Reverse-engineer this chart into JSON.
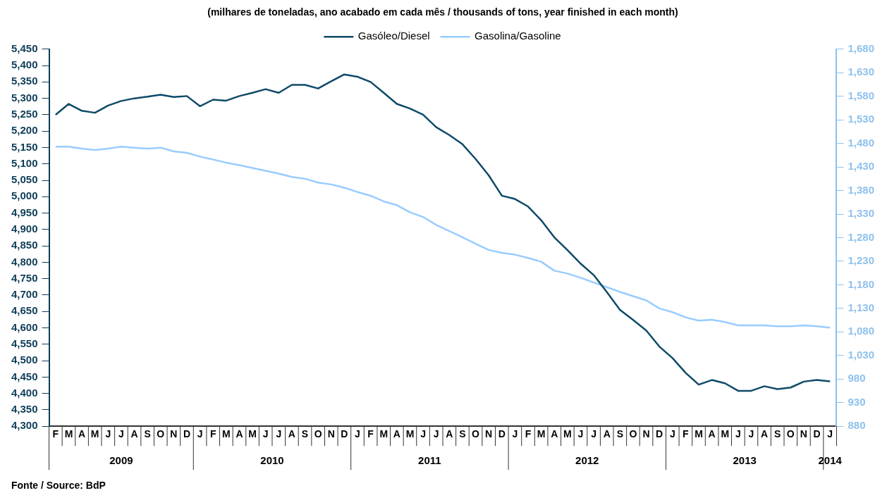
{
  "chart_data": {
    "type": "line",
    "subtitle": "(milhares de toneladas, ano acabado em cada mês / thousands of tons, year finished in each month)",
    "categories": [
      "F",
      "M",
      "A",
      "M",
      "J",
      "J",
      "A",
      "S",
      "O",
      "N",
      "D",
      "J",
      "F",
      "M",
      "A",
      "M",
      "J",
      "J",
      "A",
      "S",
      "O",
      "N",
      "D",
      "J",
      "F",
      "M",
      "A",
      "M",
      "J",
      "J",
      "A",
      "S",
      "O",
      "N",
      "D",
      "J",
      "F",
      "M",
      "A",
      "M",
      "J",
      "J",
      "A",
      "S",
      "O",
      "N",
      "D",
      "J",
      "F",
      "M",
      "A",
      "M",
      "J",
      "J",
      "A",
      "S",
      "O",
      "N",
      "D",
      "J"
    ],
    "series": [
      {
        "name": "Gasóleo/Diesel",
        "color": "#0e4a68",
        "values": [
          5250,
          5283,
          5262,
          5256,
          5278,
          5292,
          5300,
          5305,
          5311,
          5304,
          5307,
          5276,
          5296,
          5293,
          5307,
          5317,
          5328,
          5317,
          5341,
          5341,
          5330,
          5352,
          5373,
          5366,
          5350,
          5317,
          5283,
          5269,
          5250,
          5212,
          5188,
          5160,
          5115,
          5065,
          5003,
          4993,
          4970,
          4928,
          4876,
          4837,
          4796,
          4761,
          4709,
          4655,
          4624,
          4592,
          4543,
          4508,
          4463,
          4427,
          4441,
          4431,
          4408,
          4408,
          4422,
          4413,
          4418,
          4436,
          4441,
          4437
        ]
      },
      {
        "name": "Gasolina/Gasoline",
        "color": "#99ccff",
        "axis": "y2",
        "values": [
          1473,
          1473,
          1469,
          1466,
          1469,
          1473,
          1471,
          1469,
          1471,
          1463,
          1460,
          1452,
          1446,
          1439,
          1434,
          1428,
          1422,
          1416,
          1409,
          1405,
          1397,
          1393,
          1386,
          1377,
          1369,
          1357,
          1349,
          1334,
          1324,
          1307,
          1294,
          1281,
          1267,
          1254,
          1248,
          1244,
          1237,
          1229,
          1210,
          1204,
          1195,
          1185,
          1175,
          1165,
          1156,
          1147,
          1130,
          1122,
          1111,
          1104,
          1106,
          1101,
          1094,
          1094,
          1094,
          1092,
          1092,
          1094,
          1092,
          1089
        ]
      }
    ],
    "ylim": [
      4300,
      5450
    ],
    "yticks": [
      {
        "value": 4300,
        "label": "4,300"
      },
      {
        "value": 4350,
        "label": "4,350"
      },
      {
        "value": 4400,
        "label": "4,400"
      },
      {
        "value": 4450,
        "label": "4,450"
      },
      {
        "value": 4500,
        "label": "4,500"
      },
      {
        "value": 4550,
        "label": "4,550"
      },
      {
        "value": 4600,
        "label": "4,600"
      },
      {
        "value": 4650,
        "label": "4,650"
      },
      {
        "value": 4700,
        "label": "4,700"
      },
      {
        "value": 4750,
        "label": "4,750"
      },
      {
        "value": 4800,
        "label": "4,800"
      },
      {
        "value": 4850,
        "label": "4,850"
      },
      {
        "value": 4900,
        "label": "4,900"
      },
      {
        "value": 4950,
        "label": "4,950"
      },
      {
        "value": 5000,
        "label": "5,000"
      },
      {
        "value": 5050,
        "label": "5,050"
      },
      {
        "value": 5100,
        "label": "5,100"
      },
      {
        "value": 5150,
        "label": "5,150"
      },
      {
        "value": 5200,
        "label": "5,200"
      },
      {
        "value": 5250,
        "label": "5,250"
      },
      {
        "value": 5300,
        "label": "5,300"
      },
      {
        "value": 5350,
        "label": "5,350"
      },
      {
        "value": 5400,
        "label": "5,400"
      },
      {
        "value": 5450,
        "label": "5,450"
      }
    ],
    "y2lim": [
      880,
      1680
    ],
    "y2ticks": [
      880,
      930,
      980,
      {
        "value": 1030,
        "label": "1,030"
      },
      {
        "value": 1080,
        "label": "1,080"
      },
      {
        "value": 1130,
        "label": "1,130"
      },
      {
        "value": 1180,
        "label": "1,180"
      },
      {
        "value": 1230,
        "label": "1,230"
      },
      {
        "value": 1280,
        "label": "1,280"
      },
      {
        "value": 1330,
        "label": "1,330"
      },
      {
        "value": 1380,
        "label": "1,380"
      },
      {
        "value": 1430,
        "label": "1,430"
      },
      {
        "value": 1480,
        "label": "1,480"
      },
      {
        "value": 1530,
        "label": "1,530"
      },
      {
        "value": 1580,
        "label": "1,580"
      },
      {
        "value": 1630,
        "label": "1,630"
      },
      {
        "value": 1680,
        "label": "1,680"
      }
    ],
    "annotations": [
      "2009",
      "2010",
      "2011",
      "2012",
      "2013",
      "2014",
      "Fonte / Source: BdP"
    ],
    "legend": "top",
    "marker": "none",
    "line_style": "solid"
  }
}
